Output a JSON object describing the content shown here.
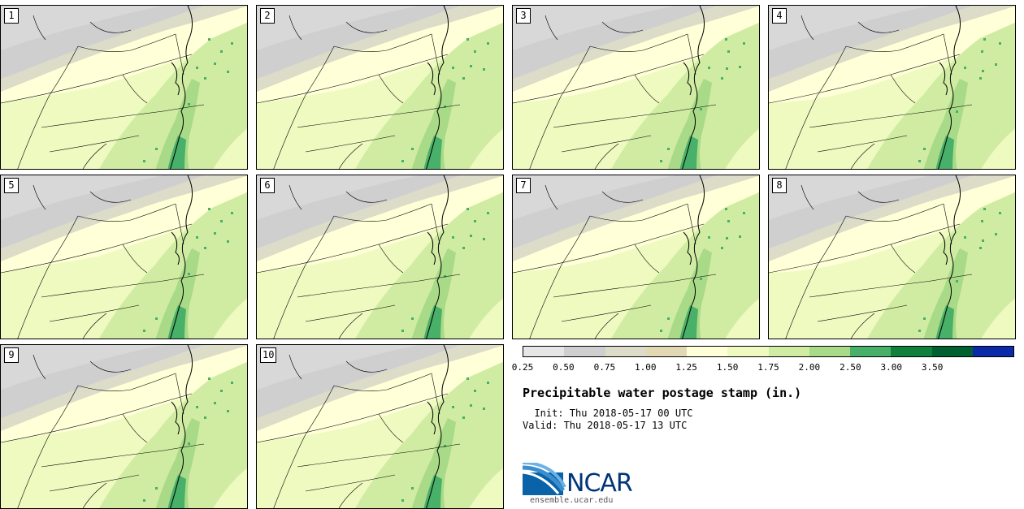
{
  "panels": [
    {
      "number": "1"
    },
    {
      "number": "2"
    },
    {
      "number": "3"
    },
    {
      "number": "4"
    },
    {
      "number": "5"
    },
    {
      "number": "6"
    },
    {
      "number": "7"
    },
    {
      "number": "8"
    },
    {
      "number": "9"
    },
    {
      "number": "10"
    }
  ],
  "colorbar": {
    "colors": [
      "#e6e6e6",
      "#cfcfcf",
      "#dcdcc8",
      "#e3d8b4",
      "#ffffd8",
      "#eefac0",
      "#d0eca2",
      "#a9da88",
      "#48b068",
      "#10803c",
      "#006030",
      "#0b2aa8"
    ],
    "labels": [
      "0.25",
      "0.50",
      "0.75",
      "1.00",
      "1.25",
      "1.50",
      "1.75",
      "2.00",
      "2.50",
      "3.00",
      "3.50"
    ]
  },
  "title": "Precipitable water postage stamp (in.)",
  "init_line": "  Init: Thu 2018-05-17 00 UTC",
  "valid_line": "Valid: Thu 2018-05-17 13 UTC",
  "logo": {
    "word": "NCAR",
    "url": "ensemble.ucar.edu"
  }
}
